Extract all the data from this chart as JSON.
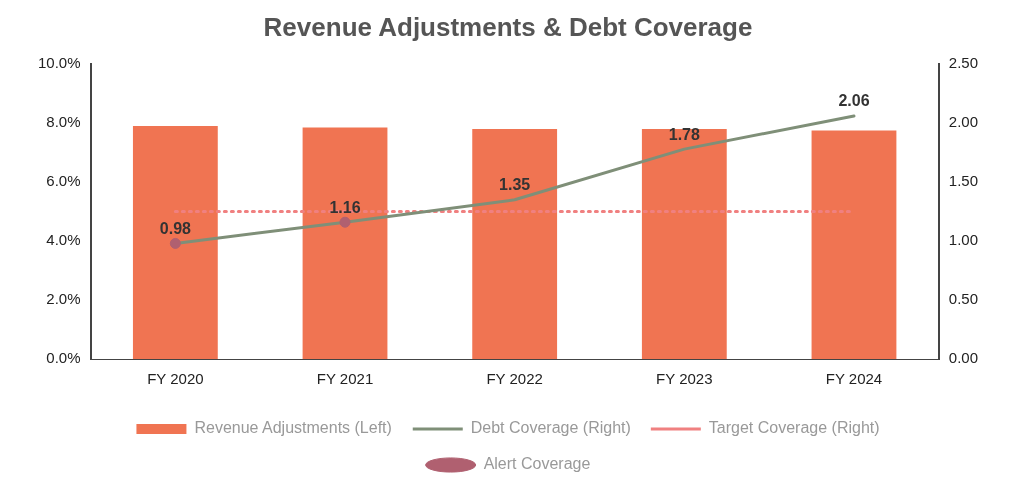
{
  "chart_data": {
    "type": "bar",
    "title": "Revenue Adjustments & Debt Coverage",
    "categories": [
      "FY 2020",
      "FY 2021",
      "FY 2022",
      "FY 2023",
      "FY 2024"
    ],
    "series": [
      {
        "name": "Revenue Adjustments (Left)",
        "color": "#f07452",
        "values": [
          7.9,
          7.85,
          7.8,
          7.8,
          7.75
        ]
      },
      {
        "name": "Debt Coverage (Right)",
        "type": "line",
        "axis": "y2",
        "color": "#7f8f78",
        "values": [
          0.98,
          1.16,
          1.35,
          1.78,
          2.06
        ],
        "value_labels": [
          "0.98",
          "1.16",
          "1.35",
          "1.78",
          "2.06"
        ],
        "marker": "none",
        "line_style": "solid"
      },
      {
        "name": "Target Coverage (Right)",
        "type": "line",
        "axis": "y2",
        "color": "#f08080",
        "values": [
          1.25,
          1.25,
          1.25,
          1.25,
          1.25
        ],
        "marker": "none",
        "line_style": "dotted"
      },
      {
        "name": "Alert Coverage",
        "type": "scatter",
        "axis": "y2",
        "color": "#b06070",
        "x": [
          "FY 2020",
          "FY 2021"
        ],
        "values": [
          0.98,
          1.16
        ],
        "marker": "circle"
      }
    ],
    "ylim": [
      0,
      10
    ],
    "yticks": [
      {
        "value": 0,
        "label": "0.0%"
      },
      {
        "value": 2,
        "label": "2.0%"
      },
      {
        "value": 4,
        "label": "4.0%"
      },
      {
        "value": 6,
        "label": "6.0%"
      },
      {
        "value": 8,
        "label": "8.0%"
      },
      {
        "value": 10,
        "label": "10.0%"
      }
    ],
    "y2lim": [
      0,
      2.5
    ],
    "y2ticks": [
      {
        "value": 0,
        "label": "0.00"
      },
      {
        "value": 0.5,
        "label": "0.50"
      },
      {
        "value": 1,
        "label": "1.00"
      },
      {
        "value": 1.5,
        "label": "1.50"
      },
      {
        "value": 2,
        "label": "2.00"
      },
      {
        "value": 2.5,
        "label": "2.50"
      }
    ],
    "grid": false,
    "legend": "bottom"
  }
}
